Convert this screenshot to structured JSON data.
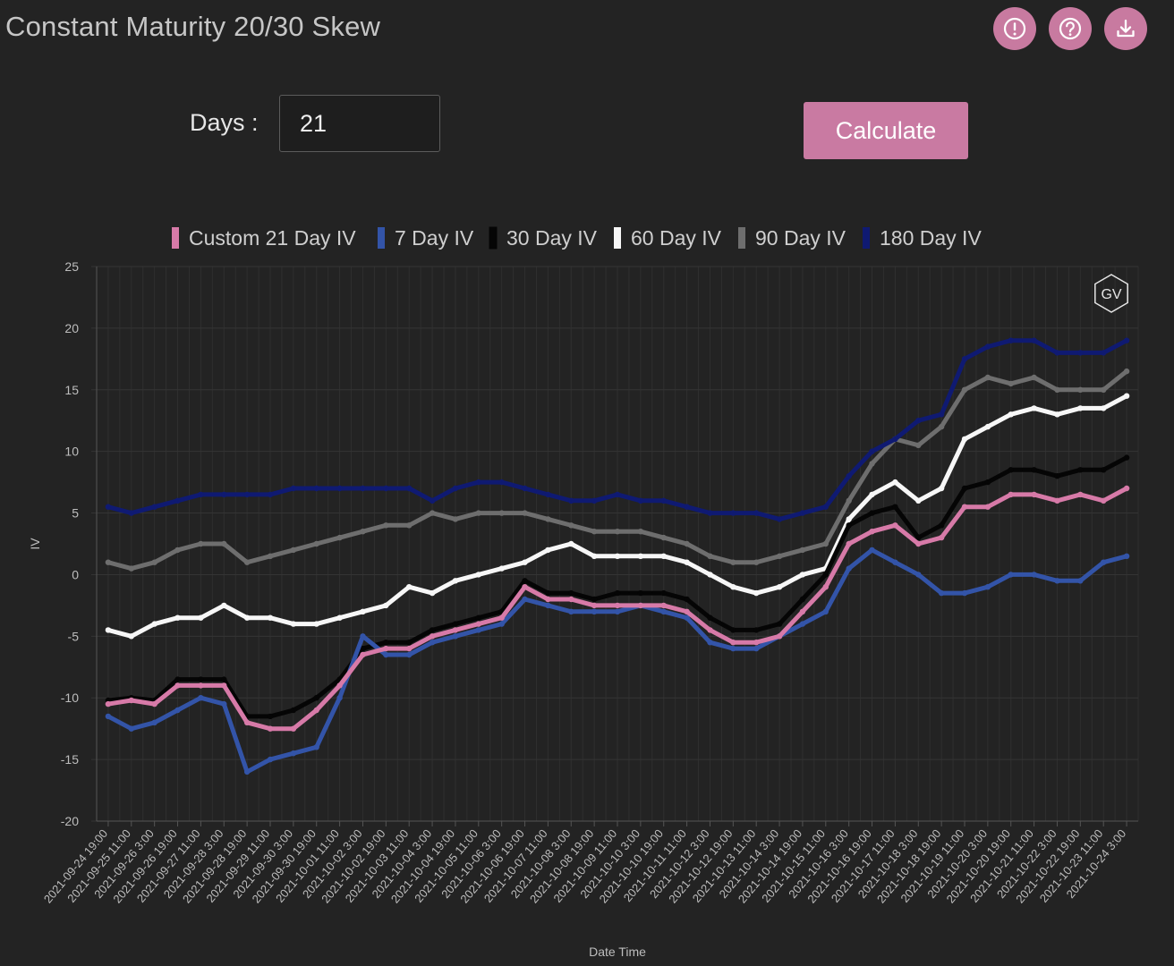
{
  "header": {
    "title": "Constant Maturity 20/30 Skew",
    "icons": [
      "alert-icon",
      "help-icon",
      "download-icon"
    ],
    "accent_color": "#c87aa0"
  },
  "controls": {
    "days_label": "Days :",
    "days_value": "21",
    "calculate_label": "Calculate"
  },
  "chart_data": {
    "type": "line",
    "title": "",
    "xlabel": "Date Time",
    "ylabel": "IV",
    "ylim": [
      -20,
      25
    ],
    "yticks": [
      25,
      20,
      15,
      10,
      5,
      0,
      -5,
      -10,
      -15,
      -20
    ],
    "grid": true,
    "legend_position": "top-center",
    "watermark": "GV",
    "x_tick_labels": [
      "2021-09-24 19:00",
      "2021-09-25 11:00",
      "2021-09-26 3:00",
      "2021-09-26 19:00",
      "2021-09-27 11:00",
      "2021-09-28 3:00",
      "2021-09-28 19:00",
      "2021-09-29 11:00",
      "2021-09-30 3:00",
      "2021-09-30 19:00",
      "2021-10-01 11:00",
      "2021-10-02 3:00",
      "2021-10-02 19:00",
      "2021-10-03 11:00",
      "2021-10-04 3:00",
      "2021-10-04 19:00",
      "2021-10-05 11:00",
      "2021-10-06 3:00",
      "2021-10-06 19:00",
      "2021-10-07 11:00",
      "2021-10-08 3:00",
      "2021-10-08 19:00",
      "2021-10-09 11:00",
      "2021-10-10 3:00",
      "2021-10-10 19:00",
      "2021-10-11 11:00",
      "2021-10-12 3:00",
      "2021-10-12 19:00",
      "2021-10-13 11:00",
      "2021-10-14 3:00",
      "2021-10-14 19:00",
      "2021-10-15 11:00",
      "2021-10-16 3:00",
      "2021-10-16 19:00",
      "2021-10-17 11:00",
      "2021-10-18 3:00",
      "2021-10-18 19:00",
      "2021-10-19 11:00",
      "2021-10-20 3:00",
      "2021-10-20 19:00",
      "2021-10-21 11:00",
      "2021-10-22 3:00",
      "2021-10-22 19:00",
      "2021-10-23 11:00",
      "2021-10-24 3:00"
    ],
    "series": [
      {
        "name": "Custom 21 Day IV",
        "color": "#d77aa8",
        "values": [
          -10.5,
          -10.2,
          -10.5,
          -9,
          -9,
          -9,
          -12,
          -12.5,
          -12.5,
          -11,
          -9,
          -6.5,
          -6,
          -6,
          -5,
          -4.5,
          -4,
          -3.5,
          -1,
          -2,
          -2,
          -2.5,
          -2.5,
          -2.5,
          -2.5,
          -3,
          -4.5,
          -5.5,
          -5.5,
          -5,
          -3,
          -1,
          2.5,
          3.5,
          4,
          2.5,
          3,
          5.5,
          5.5,
          6.5,
          6.5,
          6,
          6.5,
          6,
          7
        ]
      },
      {
        "name": "7 Day IV",
        "color": "#3354a8",
        "values": [
          -11.5,
          -12.5,
          -12,
          -11,
          -10,
          -10.5,
          -16,
          -15,
          -14.5,
          -14,
          -10,
          -5,
          -6.5,
          -6.5,
          -5.5,
          -5,
          -4.5,
          -4,
          -2,
          -2.5,
          -3,
          -3,
          -3,
          -2.5,
          -3,
          -3.5,
          -5.5,
          -6,
          -6,
          -5,
          -4,
          -3,
          0.5,
          2,
          1,
          0,
          -1.5,
          -1.5,
          -1,
          0,
          0,
          -0.5,
          -0.5,
          1,
          1.5
        ]
      },
      {
        "name": "30 Day IV",
        "color": "#050505",
        "values": [
          -10.2,
          -10,
          -10.2,
          -8.5,
          -8.5,
          -8.5,
          -11.5,
          -11.5,
          -11,
          -10,
          -8.5,
          -6,
          -5.5,
          -5.5,
          -4.5,
          -4,
          -3.5,
          -3,
          -0.5,
          -1.5,
          -1.5,
          -2,
          -1.5,
          -1.5,
          -1.5,
          -2,
          -3.5,
          -4.5,
          -4.5,
          -4,
          -2,
          0,
          4,
          5,
          5.5,
          3,
          4,
          7,
          7.5,
          8.5,
          8.5,
          8,
          8.5,
          8.5,
          9.5
        ]
      },
      {
        "name": "60 Day IV",
        "color": "#f7f7f7",
        "values": [
          -4.5,
          -5,
          -4,
          -3.5,
          -3.5,
          -2.5,
          -3.5,
          -3.5,
          -4,
          -4,
          -3.5,
          -3,
          -2.5,
          -1,
          -1.5,
          -0.5,
          0,
          0.5,
          1,
          2,
          2.5,
          1.5,
          1.5,
          1.5,
          1.5,
          1,
          0,
          -1,
          -1.5,
          -1,
          0,
          0.5,
          4.5,
          6.5,
          7.5,
          6,
          7,
          11,
          12,
          13,
          13.5,
          13,
          13.5,
          13.5,
          14.5
        ]
      },
      {
        "name": "90 Day IV",
        "color": "#6e6e6e",
        "values": [
          1,
          0.5,
          1,
          2,
          2.5,
          2.5,
          1,
          1.5,
          2,
          2.5,
          3,
          3.5,
          4,
          4,
          5,
          4.5,
          5,
          5,
          5,
          4.5,
          4,
          3.5,
          3.5,
          3.5,
          3,
          2.5,
          1.5,
          1,
          1,
          1.5,
          2,
          2.5,
          6,
          9,
          11,
          10.5,
          12,
          15,
          16,
          15.5,
          16,
          15,
          15,
          15,
          16.5
        ]
      },
      {
        "name": "180 Day IV",
        "color": "#0f1a72",
        "values": [
          5.5,
          5,
          5.5,
          6,
          6.5,
          6.5,
          6.5,
          6.5,
          7,
          7,
          7,
          7,
          7,
          7,
          6,
          7,
          7.5,
          7.5,
          7,
          6.5,
          6,
          6,
          6.5,
          6,
          6,
          5.5,
          5,
          5,
          5,
          4.5,
          5,
          5.5,
          8,
          10,
          11,
          12.5,
          13,
          17.5,
          18.5,
          19,
          19,
          18,
          18,
          18,
          19
        ]
      }
    ]
  }
}
